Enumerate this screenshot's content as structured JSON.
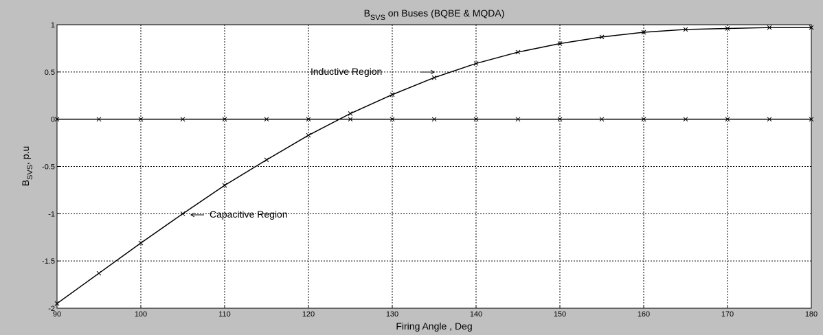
{
  "chart_data": {
    "type": "line",
    "title": {
      "main": "B",
      "sub": "SVS",
      "rest": " on Buses (BQBE & MQDA)"
    },
    "xlabel": "Firing Angle , Deg",
    "ylabel": {
      "main": "B",
      "sub": "SVS",
      "rest": ", p.u"
    },
    "x": [
      90,
      95,
      100,
      105,
      110,
      115,
      120,
      125,
      130,
      135,
      140,
      145,
      150,
      155,
      160,
      165,
      170,
      175,
      180
    ],
    "series": [
      {
        "color": "#000000",
        "values": [
          -1.95,
          -1.63,
          -1.31,
          -1.0,
          -0.7,
          -0.43,
          -0.17,
          0.06,
          0.26,
          0.44,
          0.59,
          0.71,
          0.8,
          0.87,
          0.92,
          0.95,
          0.96,
          0.97,
          0.97
        ]
      },
      {
        "color": "#000000",
        "values": [
          0,
          0,
          0,
          0,
          0,
          0,
          0,
          0,
          0,
          0,
          0,
          0,
          0,
          0,
          0,
          0,
          0,
          0,
          0
        ]
      }
    ],
    "xlim": [
      90,
      180
    ],
    "xticks": [
      90,
      100,
      110,
      120,
      130,
      140,
      150,
      160,
      170,
      180
    ],
    "ylim": [
      -2,
      1
    ],
    "yticks": [
      -2,
      -1.5,
      -1,
      -0.5,
      0,
      0.5,
      1
    ],
    "grid": true,
    "annotations": [
      "Inductive Region",
      "Capacitive Region"
    ]
  }
}
